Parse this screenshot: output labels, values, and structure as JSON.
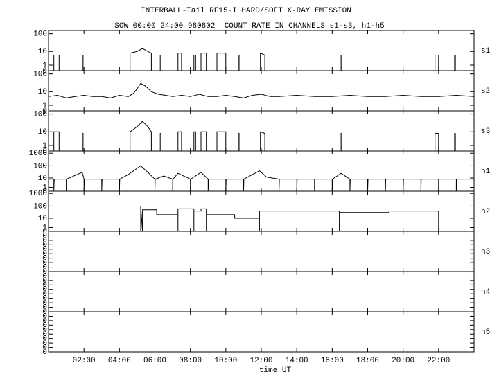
{
  "chart_data": [
    {
      "type": "line",
      "title": "INTERBALL-Tail RF15-I HARD/SOFT X-RAY EMISSION",
      "subtitle": "SOW 00:00 24:00 980802  COUNT RATE IN CHANNELS s1-s3, h1-h5",
      "label": "s1",
      "yscale": "log(1+y)",
      "ylim": [
        0,
        150
      ],
      "yticks": [
        100,
        10,
        1,
        0
      ],
      "xlim": [
        0,
        24
      ],
      "color": "#000000",
      "x": [
        0,
        0.3,
        0.3,
        0.6,
        0.6,
        1.9,
        1.9,
        1.95,
        1.95,
        4.6,
        4.6,
        5.0,
        5.3,
        5.6,
        5.8,
        5.8,
        6.3,
        6.3,
        6.35,
        6.35,
        7.3,
        7.3,
        7.5,
        7.5,
        8.2,
        8.2,
        8.3,
        8.3,
        8.6,
        8.6,
        8.9,
        8.9,
        9.5,
        9.5,
        10.0,
        10.0,
        10.7,
        10.7,
        10.75,
        10.75,
        11.95,
        11.95,
        12.2,
        12.2,
        16.5,
        16.5,
        16.55,
        16.55,
        21.8,
        21.8,
        22.0,
        22.0,
        22.9,
        22.9,
        22.95,
        22.95,
        24
      ],
      "values": [
        0,
        0,
        6,
        6,
        0,
        0,
        6,
        6,
        0,
        0,
        8,
        10,
        15,
        10,
        8,
        0,
        0,
        6,
        6,
        0,
        0,
        8,
        8,
        0,
        0,
        6,
        6,
        0,
        0,
        8,
        8,
        0,
        0,
        8,
        8,
        0,
        0,
        6,
        6,
        0,
        0,
        8,
        6,
        0,
        0,
        6,
        6,
        0,
        0,
        6,
        6,
        0,
        0,
        6,
        6,
        0,
        0
      ]
    },
    {
      "type": "line",
      "label": "s2",
      "yscale": "log(1+y)",
      "ylim": [
        0,
        150
      ],
      "yticks": [
        100,
        10,
        1,
        0
      ],
      "xlim": [
        0,
        24
      ],
      "color": "#000000",
      "x": [
        0,
        0.5,
        1,
        1.5,
        2,
        2.5,
        3,
        3.5,
        4,
        4.5,
        4.8,
        5,
        5.2,
        5.5,
        5.8,
        6.2,
        6.6,
        7,
        7.5,
        8,
        8.5,
        9,
        9.5,
        10,
        10.5,
        11,
        11.5,
        12,
        12.5,
        13,
        14,
        15,
        16,
        17,
        18,
        19,
        20,
        21,
        22,
        23,
        24
      ],
      "values": [
        5,
        6,
        4,
        5,
        6,
        5,
        5,
        4,
        6,
        5,
        8,
        15,
        30,
        20,
        10,
        7,
        6,
        5,
        6,
        5,
        7,
        5,
        5,
        6,
        5,
        4,
        6,
        7,
        5,
        5,
        6,
        5,
        5,
        6,
        5,
        5,
        6,
        5,
        5,
        6,
        5
      ]
    },
    {
      "type": "line",
      "label": "s3",
      "yscale": "log(1+y)",
      "ylim": [
        0,
        150
      ],
      "yticks": [
        100,
        10,
        1,
        0
      ],
      "xlim": [
        0,
        24
      ],
      "color": "#000000",
      "x": [
        0,
        0.3,
        0.3,
        0.6,
        0.6,
        1.9,
        1.9,
        1.95,
        1.95,
        4.6,
        4.6,
        5.0,
        5.3,
        5.6,
        5.8,
        5.8,
        6.3,
        6.3,
        6.35,
        6.35,
        7.3,
        7.3,
        7.5,
        7.5,
        8.2,
        8.2,
        8.3,
        8.3,
        8.6,
        8.6,
        8.9,
        8.9,
        9.5,
        9.5,
        10.0,
        10.0,
        10.7,
        10.7,
        10.75,
        10.75,
        11.95,
        11.95,
        12.2,
        12.2,
        16.5,
        16.5,
        16.55,
        16.55,
        21.8,
        21.8,
        22.0,
        22.0,
        22.9,
        22.9,
        22.95,
        22.95,
        24
      ],
      "values": [
        0,
        0,
        10,
        10,
        0,
        0,
        8,
        8,
        0,
        0,
        10,
        20,
        40,
        20,
        10,
        0,
        0,
        8,
        8,
        0,
        0,
        10,
        10,
        0,
        0,
        10,
        10,
        0,
        0,
        10,
        10,
        0,
        0,
        10,
        10,
        0,
        0,
        8,
        8,
        0,
        0,
        10,
        8,
        0,
        0,
        8,
        8,
        0,
        0,
        8,
        8,
        0,
        0,
        8,
        8,
        0,
        0
      ]
    },
    {
      "type": "line",
      "label": "h1",
      "yscale": "log(1+y)",
      "ylim": [
        0,
        1500
      ],
      "yticks": [
        1000,
        100,
        10,
        1,
        0
      ],
      "xlim": [
        0,
        24
      ],
      "color": "#000000",
      "x": [
        0,
        0.3,
        0.3,
        0.32,
        1.0,
        1.0,
        1.02,
        1.9,
        2.0,
        2.0,
        2.02,
        3.0,
        3.0,
        3.02,
        4.0,
        4.0,
        4.02,
        4.5,
        5.2,
        5.6,
        6.0,
        6.0,
        6.02,
        6.5,
        7.0,
        7.0,
        7.02,
        7.3,
        8.0,
        8.0,
        8.02,
        8.6,
        9.0,
        9.0,
        9.02,
        10.0,
        10.0,
        10.02,
        11.0,
        11.0,
        11.02,
        11.9,
        12.3,
        13.0,
        13.0,
        13.02,
        14.0,
        14.0,
        14.02,
        15.0,
        15.0,
        15.02,
        16.0,
        16.0,
        16.02,
        16.5,
        17.0,
        17.0,
        17.02,
        18.0,
        18.0,
        18.02,
        19.0,
        19.0,
        19.02,
        20.0,
        20.0,
        20.02,
        21.0,
        21.0,
        21.02,
        22.0,
        22.0,
        22.02,
        23.0,
        23.0,
        23.02,
        24
      ],
      "values": [
        8,
        8,
        0,
        8,
        8,
        0,
        8,
        30,
        8,
        0,
        8,
        8,
        0,
        8,
        8,
        0,
        8,
        20,
        100,
        30,
        8,
        0,
        8,
        15,
        8,
        0,
        8,
        25,
        8,
        0,
        8,
        30,
        8,
        0,
        8,
        8,
        0,
        8,
        8,
        0,
        8,
        40,
        12,
        8,
        0,
        8,
        8,
        0,
        8,
        8,
        0,
        8,
        8,
        0,
        8,
        25,
        8,
        0,
        8,
        8,
        0,
        8,
        8,
        0,
        8,
        8,
        0,
        8,
        8,
        0,
        8,
        8,
        0,
        8,
        8,
        0,
        8,
        8
      ]
    },
    {
      "type": "line",
      "label": "h2",
      "yscale": "log(1+y)",
      "ylim": [
        0,
        1500
      ],
      "yticks": [
        1000,
        100,
        10,
        1,
        0
      ],
      "xlim": [
        0,
        24
      ],
      "color": "#000000",
      "x": [
        5.2,
        5.2,
        5.3,
        5.3,
        6.1,
        6.1,
        7.3,
        7.3,
        7.3,
        8.2,
        8.2,
        8.2,
        8.6,
        8.6,
        8.9,
        8.9,
        8.9,
        10.5,
        10.5,
        11.9,
        11.9,
        11.9,
        16.4,
        16.4,
        16.4,
        19.2,
        19.2,
        22.0,
        22.0
      ],
      "values": [
        0,
        100,
        0,
        50,
        50,
        20,
        20,
        0,
        60,
        60,
        0,
        40,
        40,
        60,
        60,
        0,
        20,
        20,
        10,
        10,
        0,
        40,
        40,
        0,
        30,
        30,
        40,
        40,
        0
      ]
    },
    {
      "type": "line",
      "label": "h3",
      "yscale": "linear",
      "ylim": [
        0,
        0.45
      ],
      "xlim": [
        0,
        24
      ],
      "yticks": [
        {
          "value": 0,
          "label": "0"
        },
        {
          "value": 0.05,
          "label": "0"
        },
        {
          "value": 0.1,
          "label": "0"
        },
        {
          "value": 0.15,
          "label": "0"
        },
        {
          "value": 0.2,
          "label": "0"
        },
        {
          "value": 0.25,
          "label": "0"
        },
        {
          "value": 0.3,
          "label": "0"
        },
        {
          "value": 0.35,
          "label": "0"
        },
        {
          "value": 0.4,
          "label": "0"
        }
      ]
    },
    {
      "type": "line",
      "label": "h4",
      "yscale": "linear",
      "ylim": [
        0,
        0.45
      ],
      "xlim": [
        0,
        24
      ],
      "yticks": [
        {
          "value": 0,
          "label": "0"
        },
        {
          "value": 0.05,
          "label": "0"
        },
        {
          "value": 0.1,
          "label": "0"
        },
        {
          "value": 0.15,
          "label": "0"
        },
        {
          "value": 0.2,
          "label": "0"
        },
        {
          "value": 0.25,
          "label": "0"
        },
        {
          "value": 0.3,
          "label": "0"
        },
        {
          "value": 0.35,
          "label": "0"
        },
        {
          "value": 0.4,
          "label": "0"
        }
      ]
    },
    {
      "type": "line",
      "label": "h5",
      "yscale": "linear",
      "ylim": [
        0,
        0.45
      ],
      "xlim": [
        0,
        24
      ],
      "xlabel": "time UT",
      "yticks": [
        {
          "value": 0,
          "label": "0"
        },
        {
          "value": 0.05,
          "label": "0"
        },
        {
          "value": 0.1,
          "label": "0"
        },
        {
          "value": 0.15,
          "label": "0"
        },
        {
          "value": 0.2,
          "label": "0"
        },
        {
          "value": 0.25,
          "label": "0"
        },
        {
          "value": 0.3,
          "label": "0"
        },
        {
          "value": 0.35,
          "label": "0"
        },
        {
          "value": 0.4,
          "label": "0"
        }
      ],
      "xticks": [
        {
          "value": 2,
          "label": "02:00"
        },
        {
          "value": 4,
          "label": "04:00"
        },
        {
          "value": 6,
          "label": "06:00"
        },
        {
          "value": 8,
          "label": "08:00"
        },
        {
          "value": 10,
          "label": "10:00"
        },
        {
          "value": 12,
          "label": "12:00"
        },
        {
          "value": 14,
          "label": "14:00"
        },
        {
          "value": 16,
          "label": "16:00"
        },
        {
          "value": 18,
          "label": "18:00"
        },
        {
          "value": 20,
          "label": "20:00"
        },
        {
          "value": 22,
          "label": "22:00"
        }
      ]
    }
  ]
}
